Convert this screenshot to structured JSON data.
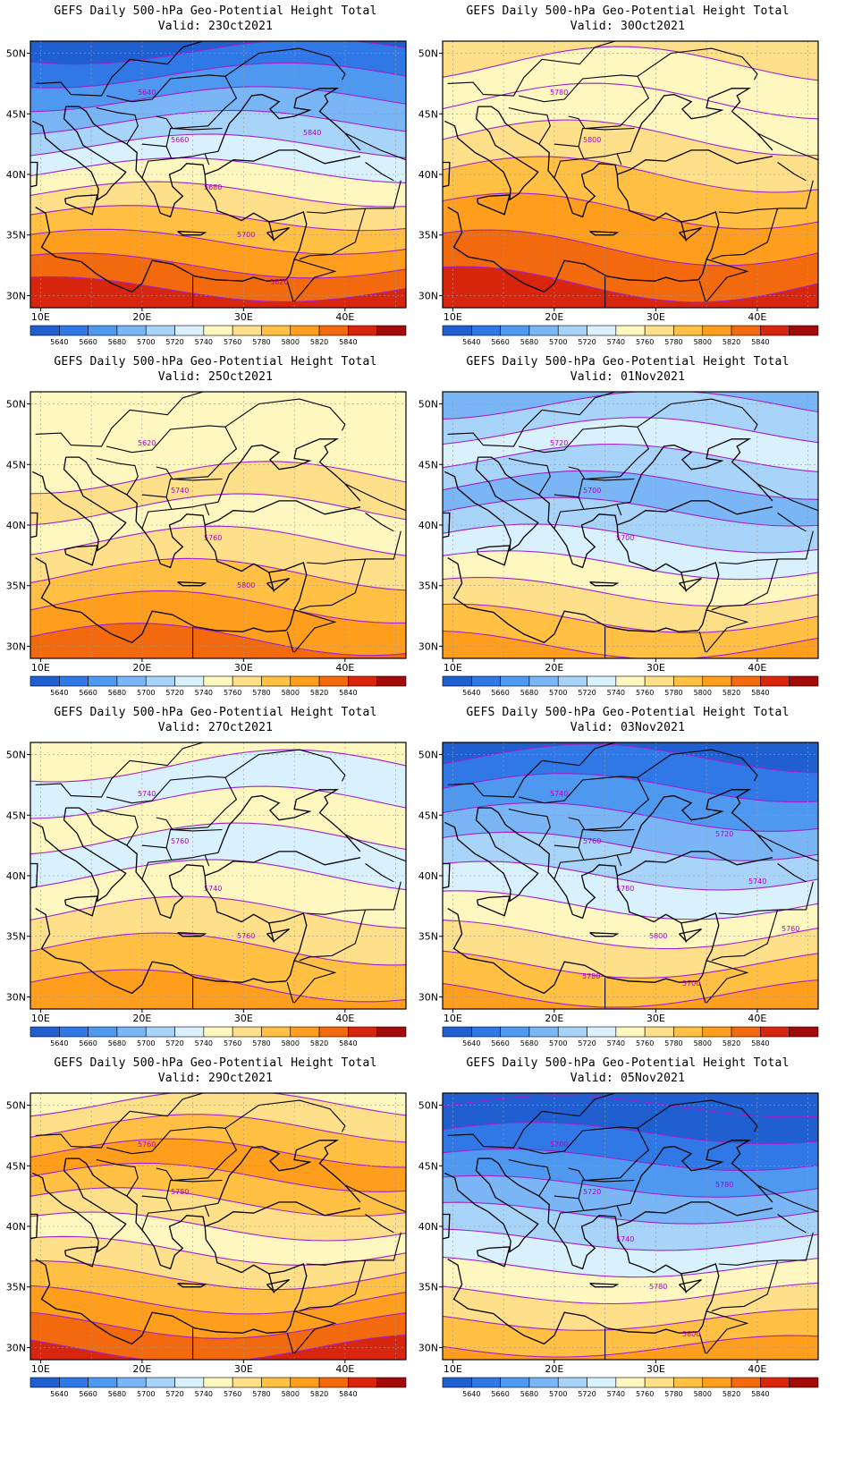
{
  "figure": {
    "axes": {
      "lat_labels": [
        "50N",
        "45N",
        "40N",
        "35N",
        "30N"
      ],
      "lon_labels": [
        "10E",
        "20E",
        "30E",
        "40E"
      ]
    },
    "colorbar": {
      "levels": [
        "5640",
        "5660",
        "5680",
        "5700",
        "5720",
        "5740",
        "5760",
        "5780",
        "5800",
        "5820",
        "5840"
      ],
      "colors": [
        "#1f5fcf",
        "#2f78e6",
        "#4f98f0",
        "#7ab6f6",
        "#a9d4fa",
        "#d8f1fc",
        "#fff7c0",
        "#ffe08a",
        "#ffc043",
        "#ff9d1c",
        "#f26a0d",
        "#d8260e",
        "#a30b0b"
      ]
    },
    "contour_color": "#a020d0",
    "panels": [
      {
        "title": "GEFS Daily 500-hPa Geo-Potential Height Total",
        "valid": "Valid: 23Oct2021",
        "contour_labels": [
          "5640",
          "5660",
          "5680",
          "5700",
          "5820",
          "5840"
        ]
      },
      {
        "title": "GEFS Daily 500-hPa Geo-Potential Height Total",
        "valid": "Valid: 30Oct2021",
        "contour_labels": [
          "5780",
          "5800"
        ]
      },
      {
        "title": "GEFS Daily 500-hPa Geo-Potential Height Total",
        "valid": "Valid: 25Oct2021",
        "contour_labels": [
          "5620",
          "5740",
          "5760",
          "5800"
        ]
      },
      {
        "title": "GEFS Daily 500-hPa Geo-Potential Height Total",
        "valid": "Valid: 01Nov2021",
        "contour_labels": [
          "5720",
          "5700",
          "5700"
        ]
      },
      {
        "title": "GEFS Daily 500-hPa Geo-Potential Height Total",
        "valid": "Valid: 27Oct2021",
        "contour_labels": [
          "5740",
          "5760",
          "5740",
          "5760"
        ]
      },
      {
        "title": "GEFS Daily 500-hPa Geo-Potential Height Total",
        "valid": "Valid: 03Nov2021",
        "contour_labels": [
          "5740",
          "5760",
          "5780",
          "5800",
          "5700",
          "5720",
          "5740",
          "5760",
          "5780"
        ]
      },
      {
        "title": "GEFS Daily 500-hPa Geo-Potential Height Total",
        "valid": "Valid: 29Oct2021",
        "contour_labels": [
          "5760",
          "5780"
        ]
      },
      {
        "title": "GEFS Daily 500-hPa Geo-Potential Height Total",
        "valid": "Valid: 05Nov2021",
        "contour_labels": [
          "5700",
          "5720",
          "5740",
          "5780",
          "5800",
          "5780"
        ]
      }
    ]
  }
}
